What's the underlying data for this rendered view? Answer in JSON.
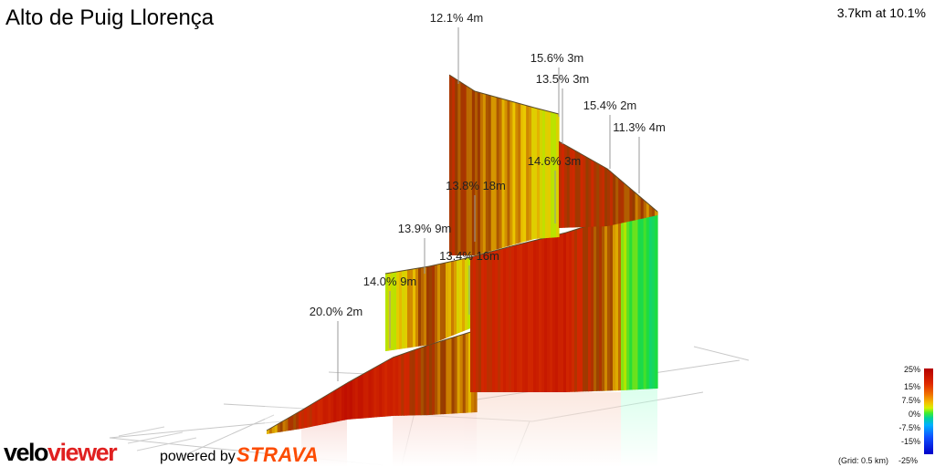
{
  "header": {
    "title": "Alto de Puig Llorença",
    "summary": "3.7km at 10.1%"
  },
  "chart_data": {
    "type": "3d-elevation-ribbon",
    "annotations": [
      {
        "grade_pct": 12.1,
        "length_m": 4,
        "label": "12.1% 4m"
      },
      {
        "grade_pct": 15.6,
        "length_m": 3,
        "label": "15.6% 3m"
      },
      {
        "grade_pct": 13.5,
        "length_m": 3,
        "label": "13.5% 3m"
      },
      {
        "grade_pct": 15.4,
        "length_m": 2,
        "label": "15.4% 2m"
      },
      {
        "grade_pct": 11.3,
        "length_m": 4,
        "label": "11.3% 4m"
      },
      {
        "grade_pct": 14.6,
        "length_m": 3,
        "label": "14.6% 3m"
      },
      {
        "grade_pct": 13.8,
        "length_m": 18,
        "label": "13.8% 18m"
      },
      {
        "grade_pct": 13.9,
        "length_m": 9,
        "label": "13.9% 9m"
      },
      {
        "grade_pct": 13.4,
        "length_m": 16,
        "label": "13.4% 16m"
      },
      {
        "grade_pct": 14.0,
        "length_m": 9,
        "label": "14.0% 9m"
      },
      {
        "grade_pct": 20.0,
        "length_m": 2,
        "label": "20.0% 2m"
      }
    ],
    "color_scale": {
      "ticks": [
        "25%",
        "15%",
        "7.5%",
        "0%",
        "-7.5%",
        "-15%",
        "-25%"
      ],
      "tick_values": [
        25,
        15,
        7.5,
        0,
        -7.5,
        -15,
        -25
      ]
    },
    "grid_note": "(Grid: 0.5 km)"
  },
  "branding": {
    "logo_part1": "velo",
    "logo_part2": "viewer",
    "powered_by": "powered by",
    "strava": "STRAVA"
  }
}
